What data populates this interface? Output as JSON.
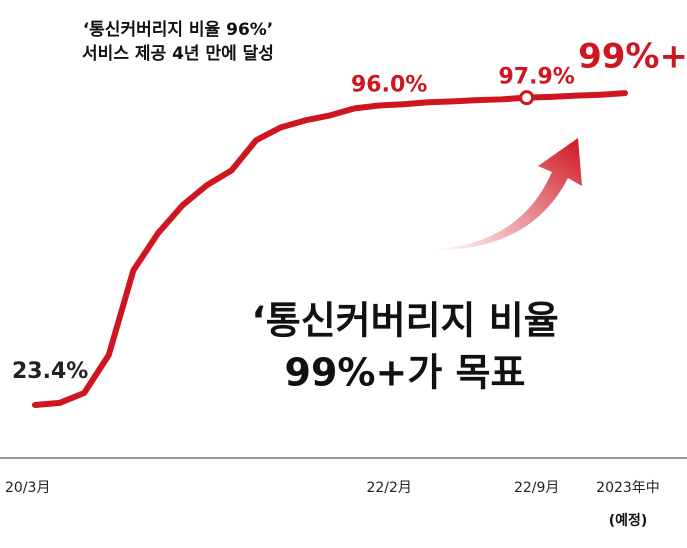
{
  "chart_data": {
    "type": "line",
    "title": "‘통신커버리지 비율 96%’",
    "subtitle": "서비스 제공 4년 만에 달성",
    "annotation": [
      "‘통신커버리지 비율",
      "99%+가 목표"
    ],
    "categories": [
      "20/3月",
      null,
      null,
      null,
      null,
      null,
      null,
      null,
      null,
      null,
      null,
      null,
      null,
      null,
      "22/2月",
      null,
      null,
      null,
      null,
      null,
      "22/9月",
      null,
      null,
      null,
      "2023年中"
    ],
    "x_label_note": "(예정)",
    "series": [
      {
        "color": "#cf1520",
        "values": [
          23.4,
          23.9,
          26.3,
          35.5,
          56,
          65,
          71.8,
          76.7,
          80.3,
          87.6,
          90.7,
          92.4,
          93.6,
          95.3,
          96.0,
          96.3,
          96.8,
          97.0,
          97.3,
          97.5,
          97.9,
          98.1,
          98.4,
          98.6,
          99
        ],
        "value_labels": [
          "23.4%",
          null,
          null,
          null,
          null,
          null,
          null,
          null,
          null,
          null,
          null,
          null,
          null,
          null,
          "96.0%",
          null,
          null,
          null,
          null,
          null,
          "97.9%",
          null,
          null,
          null,
          "99%+"
        ]
      }
    ],
    "marker_index": 20,
    "ylim": [
      20,
      100
    ]
  }
}
